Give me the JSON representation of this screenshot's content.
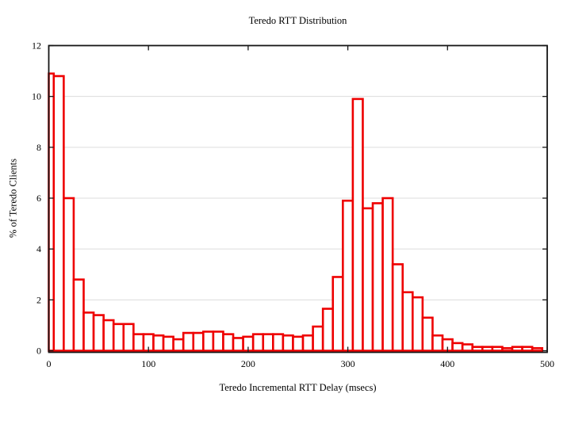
{
  "chart_data": {
    "type": "bar",
    "title": "Teredo RTT Distribution",
    "xlabel": "Teredo Incremental RTT Delay (msecs)",
    "ylabel": "% of Teredo Clients",
    "bin_width": 10,
    "bin_centers": [
      0,
      10,
      20,
      30,
      40,
      50,
      60,
      70,
      80,
      90,
      100,
      110,
      120,
      130,
      140,
      150,
      160,
      170,
      180,
      190,
      200,
      210,
      220,
      230,
      240,
      250,
      260,
      270,
      280,
      290,
      300,
      310,
      320,
      330,
      340,
      350,
      360,
      370,
      380,
      390,
      400,
      410,
      420,
      430,
      440,
      450,
      460,
      470,
      480,
      490
    ],
    "values": [
      10.9,
      10.8,
      6.0,
      2.8,
      1.5,
      1.4,
      1.2,
      1.05,
      1.05,
      0.65,
      0.65,
      0.6,
      0.55,
      0.45,
      0.7,
      0.7,
      0.75,
      0.75,
      0.65,
      0.5,
      0.55,
      0.65,
      0.65,
      0.65,
      0.6,
      0.55,
      0.6,
      0.95,
      1.65,
      2.9,
      5.9,
      9.9,
      5.6,
      5.8,
      6.0,
      3.4,
      2.3,
      2.1,
      1.3,
      0.6,
      0.45,
      0.3,
      0.25,
      0.15,
      0.15,
      0.15,
      0.1,
      0.15,
      0.15,
      0.1
    ],
    "xlim": [
      0,
      500
    ],
    "ylim": [
      0,
      12
    ],
    "x_ticks": [
      0,
      100,
      200,
      300,
      400,
      500
    ],
    "y_ticks": [
      0,
      2,
      4,
      6,
      8,
      10,
      12
    ],
    "grid": "horizontal-only",
    "legend": "none",
    "colors": {
      "bar_outline": "#ee0000",
      "bar_fill": "#ffffff",
      "grid": "#dcdcdc",
      "axis": "#161616",
      "text": "#000000",
      "background": "#ffffff"
    }
  }
}
